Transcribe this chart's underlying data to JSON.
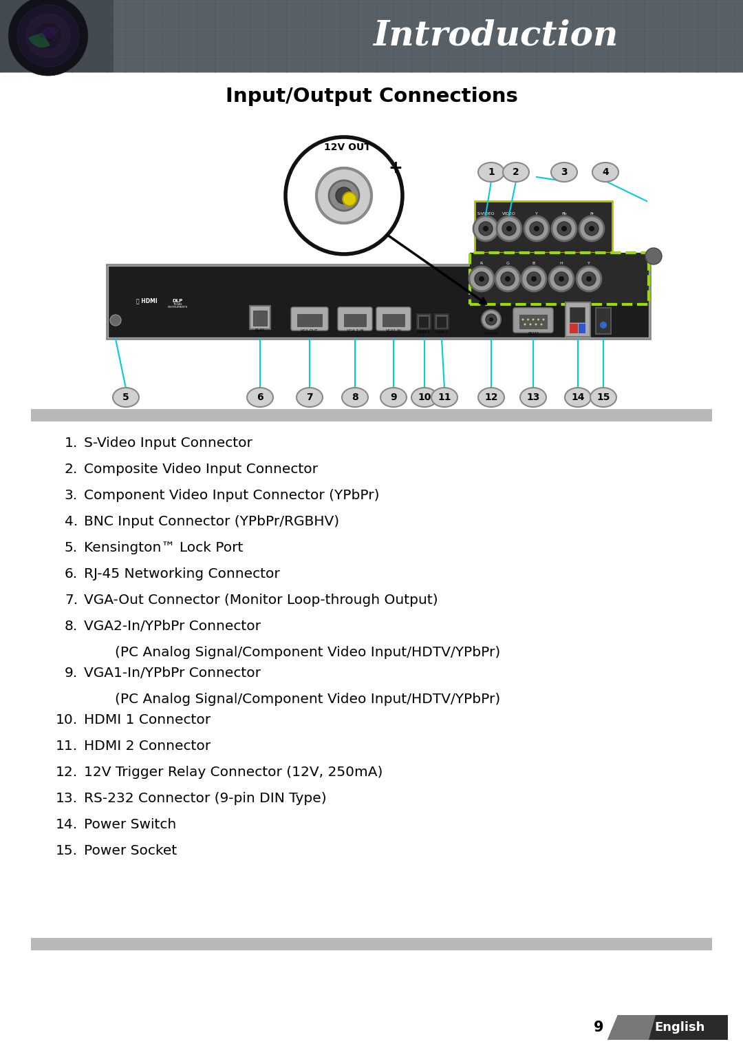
{
  "title": "Introduction",
  "section_title": "Input/Output Connections",
  "page_number": "9",
  "page_label": "English",
  "body_bg": "#ffffff",
  "items": [
    {
      "num": "1.",
      "text": "S-Video Input Connector",
      "sub": ""
    },
    {
      "num": "2.",
      "text": "Composite Video Input Connector",
      "sub": ""
    },
    {
      "num": "3.",
      "text": "Component Video Input Connector (YPbPr)",
      "sub": ""
    },
    {
      "num": "4.",
      "text": "BNC Input Connector (YPbPr/RGBHV)",
      "sub": ""
    },
    {
      "num": "5.",
      "text": "Kensington™ Lock Port",
      "sub": ""
    },
    {
      "num": "6.",
      "text": "RJ-45 Networking Connector",
      "sub": ""
    },
    {
      "num": "7.",
      "text": "VGA-Out Connector (Monitor Loop-through Output)",
      "sub": ""
    },
    {
      "num": "8.",
      "text": "VGA2-In/YPbPr Connector",
      "sub": "(PC Analog Signal/Component Video Input/HDTV/YPbPr)"
    },
    {
      "num": "9.",
      "text": "VGA1-In/YPbPr Connector",
      "sub": "(PC Analog Signal/Component Video Input/HDTV/YPbPr)"
    },
    {
      "num": "10.",
      "text": "HDMI 1 Connector",
      "sub": ""
    },
    {
      "num": "11.",
      "text": "HDMI 2 Connector",
      "sub": ""
    },
    {
      "num": "12.",
      "text": "12V Trigger Relay Connector (12V, 250mA)",
      "sub": ""
    },
    {
      "num": "13.",
      "text": "RS-232 Connector (9-pin DIN Type)",
      "sub": ""
    },
    {
      "num": "14.",
      "text": "Power Switch",
      "sub": ""
    },
    {
      "num": "15.",
      "text": "Power Socket",
      "sub": ""
    }
  ],
  "connector_color": "#00ccdd",
  "label_fill": "#d0d0d0",
  "label_stroke": "#888888",
  "title_font_size": 36,
  "section_font_size": 21,
  "item_font_size": 14.5
}
